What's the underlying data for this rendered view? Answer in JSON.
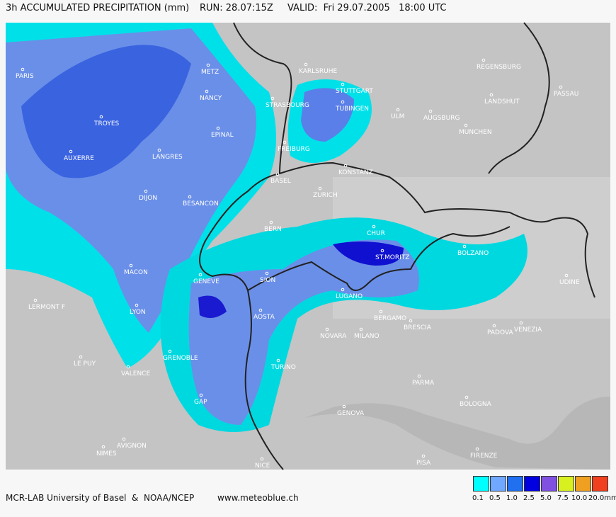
{
  "header": {
    "title": "3h ACCUMULATED PRECIPITATION (mm)",
    "run": "RUN: 28.07:15Z",
    "valid": "VALID:  Fri 29.07.2005   18:00 UTC"
  },
  "cities": [
    "PARIS",
    "METZ",
    "NANCY",
    "TROYES",
    "EPINAL",
    "STRASBOURG",
    "KARLSRUHE",
    "STUTTGART",
    "TUBINGEN",
    "ULM",
    "AUGSBURG",
    "MUNCHEN",
    "REGENSBURG",
    "LANDSHUT",
    "PASSAU",
    "FREIBURG",
    "AUXERRE",
    "LANGRES",
    "BASEL",
    "KONSTANZ",
    "ZURICH",
    "DIJON",
    "BESANCON",
    "BERN",
    "CHUR",
    "BOLZANO",
    "ST.MORITZ",
    "MACON",
    "GENEVE",
    "SION",
    "UDINE",
    "LYON",
    "LERMONT F",
    "AOSTA",
    "LUGANO",
    "BERGAMO",
    "BRESCIA",
    "NOVARA",
    "MILANO",
    "PADOVA",
    "VENEZIA",
    "LE PUY",
    "VALENCE",
    "GRENOBLE",
    "TURINO",
    "PARMA",
    "GAP",
    "GENOVA",
    "BOLOGNA",
    "AVIGNON",
    "NIMES",
    "NICE",
    "PISA",
    "FIRENZE"
  ],
  "footer": {
    "credit": "MCR-LAB University of Basel  &  NOAA/NCEP",
    "url": "www.meteoblue.ch"
  },
  "legend": {
    "labels": [
      "0.1",
      "0.5",
      "1.0",
      "2.5",
      "5.0",
      "7.5",
      "10.0",
      "20.0mm"
    ],
    "colors": [
      "#00ffff",
      "#70a8ff",
      "#2070f0",
      "#0000e0",
      "#8050e0",
      "#d8f020",
      "#f0a020",
      "#f04020"
    ]
  }
}
